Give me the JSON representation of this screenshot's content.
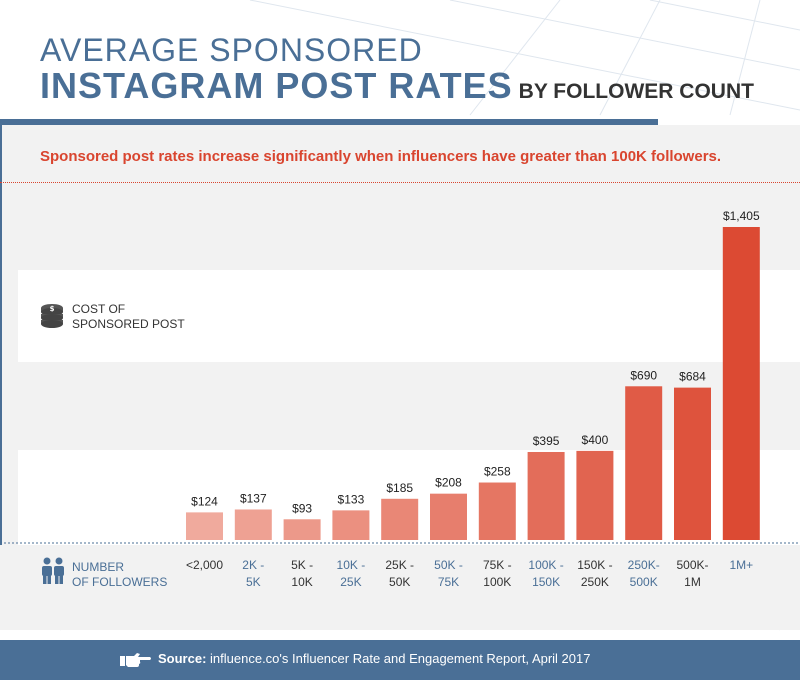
{
  "header": {
    "title_line1": "AVERAGE SPONSORED",
    "title_line2_bold": "INSTAGRAM POST RATES",
    "title_line2_suffix": "BY FOLLOWER COUNT",
    "subtitle": "Sponsored post rates increase significantly when influencers have greater than 100K followers."
  },
  "legend": {
    "y_label_line1": "COST OF",
    "y_label_line2": "SPONSORED POST",
    "x_label_line1": "NUMBER",
    "x_label_line2": "OF FOLLOWERS",
    "cost_icon": "coin-stack-icon",
    "followers_icon": "people-icon"
  },
  "footer": {
    "source_label": "Source:",
    "source_text": "influence.co's Influencer Rate and Engagement Report, April 2017",
    "icon": "pointing-hand-icon"
  },
  "colors": {
    "brand_blue": "#4a6f96",
    "accent_red": "#d9452f",
    "bar_light": "#f0aa9d",
    "bar_dark": "#dc4a33"
  },
  "chart_data": {
    "type": "bar",
    "categories": [
      "<2,000",
      "2K - 5K",
      "5K - 10K",
      "10K - 25K",
      "25K - 50K",
      "50K - 75K",
      "75K - 100K",
      "100K - 150K",
      "150K - 250K",
      "250K- 500K",
      "500K- 1M",
      "1M+"
    ],
    "category_lines": [
      [
        "<2,000"
      ],
      [
        "2K -",
        "5K"
      ],
      [
        "5K -",
        "10K"
      ],
      [
        "10K -",
        "25K"
      ],
      [
        "25K -",
        "50K"
      ],
      [
        "50K -",
        "75K"
      ],
      [
        "75K -",
        "100K"
      ],
      [
        "100K -",
        "150K"
      ],
      [
        "150K -",
        "250K"
      ],
      [
        "250K-",
        "500K"
      ],
      [
        "500K-",
        "1M"
      ],
      [
        "1M+"
      ]
    ],
    "category_colors": [
      "#333333",
      "#4a6f96",
      "#333333",
      "#4a6f96",
      "#333333",
      "#4a6f96",
      "#333333",
      "#4a6f96",
      "#333333",
      "#4a6f96",
      "#333333",
      "#4a6f96"
    ],
    "values": [
      124,
      137,
      93,
      133,
      185,
      208,
      258,
      395,
      400,
      690,
      684,
      1405
    ],
    "value_labels": [
      "$124",
      "$137",
      "$93",
      "$133",
      "$185",
      "$208",
      "$258",
      "$395",
      "$400",
      "$690",
      "$684",
      "$1,405"
    ],
    "title": "AVERAGE SPONSORED INSTAGRAM POST RATES BY FOLLOWER COUNT",
    "xlabel": "NUMBER OF FOLLOWERS",
    "ylabel": "COST OF SPONSORED POST",
    "ylim": [
      0,
      1500
    ],
    "grid": false,
    "legend": "none"
  }
}
